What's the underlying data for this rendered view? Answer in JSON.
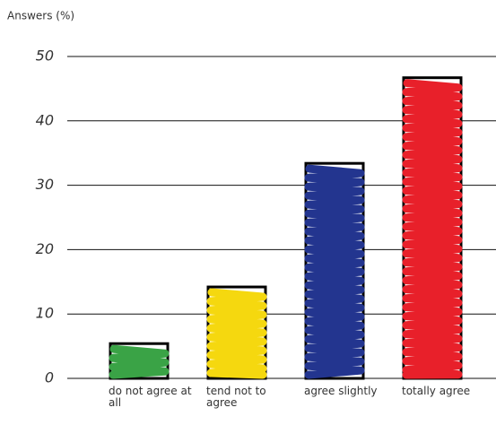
{
  "chart_data": {
    "type": "bar",
    "y_label": "Answers (%)",
    "categories": [
      "do not agree at all",
      "tend not to agree",
      "agree slightly",
      "totally agree"
    ],
    "values": [
      5.4,
      14.2,
      33.4,
      46.7
    ],
    "colors": [
      "#3aa346",
      "#f5d80f",
      "#23358f",
      "#e8202a"
    ],
    "ylim": [
      0,
      50
    ],
    "yticks": [
      0,
      10,
      20,
      30,
      40,
      50
    ],
    "grid": true
  }
}
